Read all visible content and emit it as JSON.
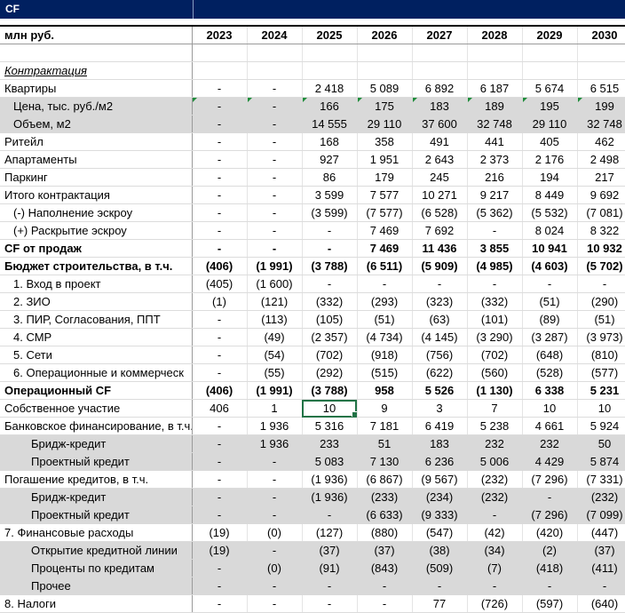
{
  "title": "CF",
  "header": {
    "label": "млн руб.",
    "years": [
      "2023",
      "2024",
      "2025",
      "2026",
      "2027",
      "2028",
      "2029",
      "2030"
    ]
  },
  "selected_cell": {
    "row": "Собственное участие",
    "year": "2025"
  },
  "rows": [
    {
      "label": "",
      "style": "",
      "indent": 0,
      "values": [
        "",
        "",
        "",
        "",
        "",
        "",
        "",
        ""
      ]
    },
    {
      "label": "Контрактация",
      "style": "italic",
      "indent": 0,
      "values": [
        "",
        "",
        "",
        "",
        "",
        "",
        "",
        ""
      ]
    },
    {
      "label": "Квартиры",
      "style": "",
      "indent": 0,
      "values": [
        "-",
        "-",
        "2 418",
        "5 089",
        "6 892",
        "6 187",
        "5 674",
        "6 515"
      ]
    },
    {
      "label": "Цена, тыс. руб./м2",
      "style": "gray",
      "indent": 1,
      "marker": true,
      "values": [
        "-",
        "-",
        "166",
        "175",
        "183",
        "189",
        "195",
        "199"
      ]
    },
    {
      "label": "Объем, м2",
      "style": "gray",
      "indent": 1,
      "values": [
        "-",
        "-",
        "14 555",
        "29 110",
        "37 600",
        "32 748",
        "29 110",
        "32 748"
      ]
    },
    {
      "label": "Ритейл",
      "style": "",
      "indent": 0,
      "values": [
        "-",
        "-",
        "168",
        "358",
        "491",
        "441",
        "405",
        "462"
      ]
    },
    {
      "label": "Апартаменты",
      "style": "",
      "indent": 0,
      "values": [
        "-",
        "-",
        "927",
        "1 951",
        "2 643",
        "2 373",
        "2 176",
        "2 498"
      ]
    },
    {
      "label": "Паркинг",
      "style": "",
      "indent": 0,
      "values": [
        "-",
        "-",
        "86",
        "179",
        "245",
        "216",
        "194",
        "217"
      ]
    },
    {
      "label": "Итого контрактация",
      "style": "",
      "indent": 0,
      "values": [
        "-",
        "-",
        "3 599",
        "7 577",
        "10 271",
        "9 217",
        "8 449",
        "9 692"
      ]
    },
    {
      "label": "(-) Наполнение эскроу",
      "style": "",
      "indent": 1,
      "values": [
        "-",
        "-",
        "(3 599)",
        "(7 577)",
        "(6 528)",
        "(5 362)",
        "(5 532)",
        "(7 081)"
      ]
    },
    {
      "label": "(+) Раскрытие эскроу",
      "style": "",
      "indent": 1,
      "values": [
        "-",
        "-",
        "-",
        "7 469",
        "7 692",
        "-",
        "8 024",
        "8 322"
      ]
    },
    {
      "label": "CF от продаж",
      "style": "bold",
      "indent": 0,
      "values": [
        "-",
        "-",
        "-",
        "7 469",
        "11 436",
        "3 855",
        "10 941",
        "10 932"
      ]
    },
    {
      "label": "Бюджет строительства, в т.ч.",
      "style": "bold",
      "indent": 0,
      "values": [
        "(406)",
        "(1 991)",
        "(3 788)",
        "(6 511)",
        "(5 909)",
        "(4 985)",
        "(4 603)",
        "(5 702)"
      ]
    },
    {
      "label": "1. Вход в проект",
      "style": "",
      "indent": 1,
      "values": [
        "(405)",
        "(1 600)",
        "-",
        "-",
        "-",
        "-",
        "-",
        "-"
      ]
    },
    {
      "label": "2. ЗИО",
      "style": "",
      "indent": 1,
      "values": [
        "(1)",
        "(121)",
        "(332)",
        "(293)",
        "(323)",
        "(332)",
        "(51)",
        "(290)"
      ]
    },
    {
      "label": "3. ПИР, Согласования, ППТ",
      "style": "",
      "indent": 1,
      "values": [
        "-",
        "(113)",
        "(105)",
        "(51)",
        "(63)",
        "(101)",
        "(89)",
        "(51)"
      ]
    },
    {
      "label": "4. СМР",
      "style": "",
      "indent": 1,
      "values": [
        "-",
        "(49)",
        "(2 357)",
        "(4 734)",
        "(4 145)",
        "(3 290)",
        "(3 287)",
        "(3 973)"
      ]
    },
    {
      "label": "5. Сети",
      "style": "",
      "indent": 1,
      "values": [
        "-",
        "(54)",
        "(702)",
        "(918)",
        "(756)",
        "(702)",
        "(648)",
        "(810)"
      ]
    },
    {
      "label": "6. Операционные и коммерческ",
      "style": "",
      "indent": 1,
      "values": [
        "-",
        "(55)",
        "(292)",
        "(515)",
        "(622)",
        "(560)",
        "(528)",
        "(577)"
      ]
    },
    {
      "label": "Операционный CF",
      "style": "bold",
      "indent": 0,
      "values": [
        "(406)",
        "(1 991)",
        "(3 788)",
        "958",
        "5 526",
        "(1 130)",
        "6 338",
        "5 231"
      ]
    },
    {
      "label": "Собственное участие",
      "style": "",
      "indent": 0,
      "values": [
        "406",
        "1",
        "10",
        "9",
        "3",
        "7",
        "10",
        "10"
      ]
    },
    {
      "label": "Банковское финансирование, в т.ч.",
      "style": "",
      "indent": 0,
      "values": [
        "-",
        "1 936",
        "5 316",
        "7 181",
        "6 419",
        "5 238",
        "4 661",
        "5 924"
      ]
    },
    {
      "label": "Бридж-кредит",
      "style": "gray",
      "indent": 2,
      "values": [
        "-",
        "1 936",
        "233",
        "51",
        "183",
        "232",
        "232",
        "50"
      ]
    },
    {
      "label": "Проектный кредит",
      "style": "gray",
      "indent": 2,
      "values": [
        "-",
        "-",
        "5 083",
        "7 130",
        "6 236",
        "5 006",
        "4 429",
        "5 874"
      ]
    },
    {
      "label": "Погашение кредитов, в т.ч.",
      "style": "",
      "indent": 0,
      "values": [
        "-",
        "-",
        "(1 936)",
        "(6 867)",
        "(9 567)",
        "(232)",
        "(7 296)",
        "(7 331)"
      ]
    },
    {
      "label": "Бридж-кредит",
      "style": "gray",
      "indent": 2,
      "values": [
        "-",
        "-",
        "(1 936)",
        "(233)",
        "(234)",
        "(232)",
        "-",
        "(232)"
      ]
    },
    {
      "label": "Проектный кредит",
      "style": "gray",
      "indent": 2,
      "values": [
        "-",
        "-",
        "-",
        "(6 633)",
        "(9 333)",
        "-",
        "(7 296)",
        "(7 099)"
      ]
    },
    {
      "label": "7. Финансовые расходы",
      "style": "",
      "indent": 0,
      "values": [
        "(19)",
        "(0)",
        "(127)",
        "(880)",
        "(547)",
        "(42)",
        "(420)",
        "(447)"
      ]
    },
    {
      "label": "Открытие кредитной линии",
      "style": "gray",
      "indent": 2,
      "values": [
        "(19)",
        "-",
        "(37)",
        "(37)",
        "(38)",
        "(34)",
        "(2)",
        "(37)"
      ]
    },
    {
      "label": "Проценты по кредитам",
      "style": "gray",
      "indent": 2,
      "values": [
        "-",
        "(0)",
        "(91)",
        "(843)",
        "(509)",
        "(7)",
        "(418)",
        "(411)"
      ]
    },
    {
      "label": "Прочее",
      "style": "gray",
      "indent": 2,
      "values": [
        "-",
        "-",
        "-",
        "-",
        "-",
        "-",
        "-",
        "-"
      ]
    },
    {
      "label": "8. Налоги",
      "style": "",
      "indent": 0,
      "values": [
        "-",
        "-",
        "-",
        "-",
        "77",
        "(726)",
        "(597)",
        "(640)"
      ]
    }
  ]
}
